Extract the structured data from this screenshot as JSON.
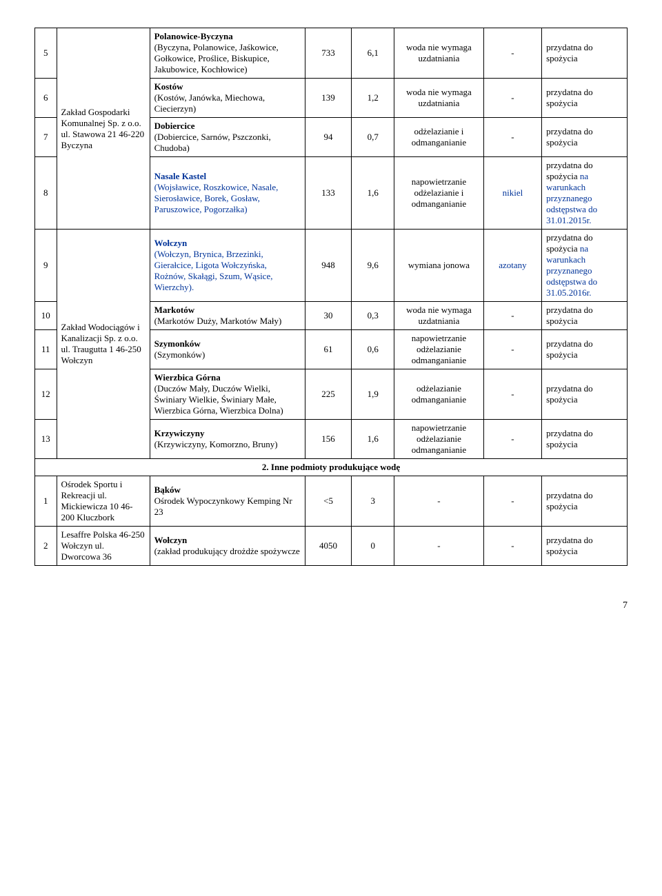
{
  "rows": [
    {
      "idx": "5",
      "name_main": "Polanowice-Byczyna",
      "name_sub": "(Byczyna, Polanowice, Jaśkowice, Gołkowice, Proślice, Biskupice, Jakubowice, Kochłowice)",
      "n1": "733",
      "n2": "6,1",
      "proc": "woda nie wymaga uzdatniania",
      "add": "-",
      "res": "przydatna do spożycia"
    },
    {
      "idx": "6",
      "name_main": "Kostów",
      "name_sub": "(Kostów, Janówka, Miechowa, Ciecierzyn)",
      "n1": "139",
      "n2": "1,2",
      "proc": "woda nie wymaga uzdatniania",
      "add": "-",
      "res": "przydatna do spożycia"
    },
    {
      "idx": "7",
      "name_main": "Dobiercice",
      "name_sub": "(Dobiercice, Sarnów, Pszczonki, Chudoba)",
      "n1": "94",
      "n2": "0,7",
      "proc": "odżelazianie i odmanganianie",
      "add": "-",
      "res": "przydatna do spożycia"
    },
    {
      "idx": "8",
      "name_main": "Nasale Kastel",
      "name_main_blue": true,
      "name_sub": "(Wojsławice, Roszkowice, Nasale, Sierosławice, Borek, Gosław, Paruszowice, Pogorzałka)",
      "name_sub_blue": true,
      "n1": "133",
      "n2": "1,6",
      "proc": "napowietrzanie odżelazianie i odmanganianie",
      "add": "nikiel",
      "add_blue": true,
      "res": "przydatna do spożycia na warunkach przyznanego odstępstwa do 31.01.2015r.",
      "res_blue_suffix": true,
      "res_black": "przydatna do spożycia",
      "res_blue": "na warunkach przyznanego odstępstwa do 31.01.2015r."
    },
    {
      "idx": "9",
      "name_main": "Wołczyn",
      "name_main_blue": true,
      "name_sub": "(Wołczyn, Brynica, Brzezinki, Gierałcice, Ligota Wołczyńska, Rożnów, Skałągi, Szum, Wąsice, Wierzchy).",
      "name_sub_blue": true,
      "n1": "948",
      "n2": "9,6",
      "proc": "wymiana jonowa",
      "add": "azotany",
      "add_blue": true,
      "res_black": "przydatna do spożycia",
      "res_blue": "na warunkach przyznanego odstępstwa do 31.05.2016r."
    },
    {
      "idx": "10",
      "name_main": "Markotów",
      "name_sub": "(Markotów Duży, Markotów Mały)",
      "n1": "30",
      "n2": "0,3",
      "proc": "woda nie wymaga uzdatniania",
      "add": "-",
      "res": "przydatna do spożycia"
    },
    {
      "idx": "11",
      "name_main": "Szymonków",
      "name_sub": "(Szymonków)",
      "n1": "61",
      "n2": "0,6",
      "proc": "napowietrzanie odżelazianie odmanganianie",
      "add": "-",
      "res": "przydatna do spożycia"
    },
    {
      "idx": "12",
      "name_main": "Wierzbica Górna",
      "name_sub": "(Duczów Mały, Duczów Wielki, Świniary Wielkie, Świniary Małe, Wierzbica Górna, Wierzbica Dolna)",
      "n1": "225",
      "n2": "1,9",
      "proc": "odżelazianie odmanganianie",
      "add": "-",
      "res": "przydatna do spożycia"
    },
    {
      "idx": "13",
      "name_main": "Krzywiczyny",
      "name_sub": "(Krzywiczyny, Komorzno, Bruny)",
      "n1": "156",
      "n2": "1,6",
      "proc": "napowietrzanie odżelazianie odmanganianie",
      "add": "-",
      "res": "przydatna do spożycia"
    }
  ],
  "operator1": "Zakład Gospodarki Komunalnej Sp. z o.o. ul. Stawowa 21 46-220 Byczyna",
  "operator2": "Zakład Wodociągów i Kanalizacji Sp. z o.o. ul. Traugutta 1 46-250 Wołczyn",
  "section2_header": "2. Inne podmioty produkujące wodę",
  "rows2": [
    {
      "idx": "1",
      "op": "Ośrodek Sportu i Rekreacji ul. Mickiewicza 10 46-200 Kluczbork",
      "name_main": "Bąków",
      "name_sub": "Ośrodek Wypoczynkowy Kemping Nr 23",
      "n1": "<5",
      "n2": "3",
      "proc": "-",
      "add": "-",
      "res": "przydatna do spożycia"
    },
    {
      "idx": "2",
      "op": "Lesaffre Polska 46-250 Wołczyn ul. Dworcowa 36",
      "name_main": "Wołczyn",
      "name_sub": "(zakład produkujący drożdże spożywcze",
      "n1": "4050",
      "n2": "0",
      "proc": "-",
      "add": "-",
      "res": "przydatna do spożycia"
    }
  ],
  "page_number": "7",
  "colors": {
    "blue": "#003399",
    "black": "#000000",
    "bg": "#ffffff"
  }
}
